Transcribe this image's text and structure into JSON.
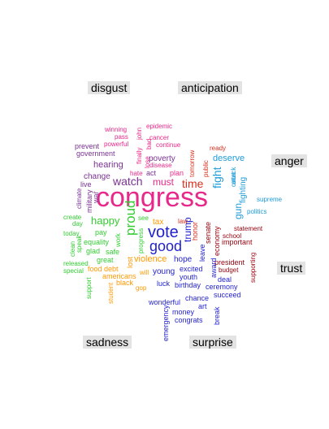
{
  "chart_data": {
    "type": "comparison-wordcloud",
    "categories": [
      "disgust",
      "anticipation",
      "anger",
      "trust",
      "sadness",
      "surprise"
    ],
    "colors": {
      "disgust": "#e7298a",
      "anticipation": "#d95f02",
      "anger": "#7570b3",
      "trust": "#1b9e77",
      "sadness": "#66a61e",
      "surprise": "#e6ab02",
      "brown": "#a6761d",
      "grey": "#666666",
      "pink": "#e7298a",
      "red": "#d7301f",
      "darkred": "#99000d",
      "purple": "#7b3294",
      "violet": "#6a3d9a",
      "blue": "#1f1fd0",
      "cyan": "#1f9bd8",
      "green": "#33cc33",
      "orange": "#ff9900",
      "darkgreen": "#33a02c",
      "navy": "#253494"
    },
    "words": [
      {
        "text": "congress",
        "color": "pink",
        "size": 34,
        "rotate": 0
      },
      {
        "text": "vote",
        "color": "blue",
        "size": 20,
        "rotate": 0
      },
      {
        "text": "good",
        "color": "blue",
        "size": 18,
        "rotate": 0
      },
      {
        "text": "proud",
        "color": "green",
        "size": 17,
        "rotate": -90
      },
      {
        "text": "watch",
        "color": "purple",
        "size": 14,
        "rotate": 0
      },
      {
        "text": "happy",
        "color": "green",
        "size": 13,
        "rotate": 0
      },
      {
        "text": "time",
        "color": "red",
        "size": 14,
        "rotate": 0
      },
      {
        "text": "fight",
        "color": "cyan",
        "size": 14,
        "rotate": -90
      },
      {
        "text": "gun",
        "color": "cyan",
        "size": 12,
        "rotate": -90
      },
      {
        "text": "trump",
        "color": "blue",
        "size": 12,
        "rotate": -90
      },
      {
        "text": "must",
        "color": "pink",
        "size": 12,
        "rotate": 0
      },
      {
        "text": "hearing",
        "color": "purple",
        "size": 11,
        "rotate": 0
      },
      {
        "text": "violence",
        "color": "orange",
        "size": 11,
        "rotate": 0
      },
      {
        "text": "deserve",
        "color": "cyan",
        "size": 11,
        "rotate": 0
      },
      {
        "text": "fighting",
        "color": "cyan",
        "size": 10,
        "rotate": -90
      },
      {
        "text": "hope",
        "color": "blue",
        "size": 10,
        "rotate": 0
      },
      {
        "text": "young",
        "color": "blue",
        "size": 10,
        "rotate": 0
      },
      {
        "text": "tax",
        "color": "orange",
        "size": 10,
        "rotate": 0
      },
      {
        "text": "poverty",
        "color": "purple",
        "size": 10,
        "rotate": 0
      },
      {
        "text": "change",
        "color": "purple",
        "size": 10,
        "rotate": 0
      },
      {
        "text": "excited",
        "color": "blue",
        "size": 9,
        "rotate": 0
      },
      {
        "text": "equality",
        "color": "green",
        "size": 9,
        "rotate": 0
      },
      {
        "text": "pay",
        "color": "green",
        "size": 9,
        "rotate": 0
      },
      {
        "text": "debt",
        "color": "orange",
        "size": 9,
        "rotate": 0
      },
      {
        "text": "plan",
        "color": "pink",
        "size": 9,
        "rotate": 0
      },
      {
        "text": "act",
        "color": "purple",
        "size": 9,
        "rotate": 0
      },
      {
        "text": "honor",
        "color": "red",
        "size": 9,
        "rotate": -90
      },
      {
        "text": "senate",
        "color": "darkred",
        "size": 9,
        "rotate": -90
      },
      {
        "text": "economy",
        "color": "darkred",
        "size": 9,
        "rotate": -90
      },
      {
        "text": "important",
        "color": "darkred",
        "size": 9,
        "rotate": 0
      },
      {
        "text": "president",
        "color": "darkred",
        "size": 9,
        "rotate": 0
      },
      {
        "text": "award",
        "color": "blue",
        "size": 9,
        "rotate": -90
      },
      {
        "text": "leave",
        "color": "blue",
        "size": 9,
        "rotate": -90
      },
      {
        "text": "luck",
        "color": "blue",
        "size": 9,
        "rotate": 0
      },
      {
        "text": "birthday",
        "color": "blue",
        "size": 9,
        "rotate": 0
      },
      {
        "text": "ceremony",
        "color": "blue",
        "size": 9,
        "rotate": 0
      },
      {
        "text": "youth",
        "color": "blue",
        "size": 9,
        "rotate": 0
      },
      {
        "text": "deal",
        "color": "blue",
        "size": 9,
        "rotate": 0
      },
      {
        "text": "succeed",
        "color": "blue",
        "size": 9,
        "rotate": 0
      },
      {
        "text": "chance",
        "color": "blue",
        "size": 9,
        "rotate": 0
      },
      {
        "text": "wonderful",
        "color": "blue",
        "size": 9,
        "rotate": 0
      },
      {
        "text": "art",
        "color": "blue",
        "size": 9,
        "rotate": 0
      },
      {
        "text": "money",
        "color": "blue",
        "size": 9,
        "rotate": 0
      },
      {
        "text": "congrats",
        "color": "blue",
        "size": 9,
        "rotate": 0
      },
      {
        "text": "break",
        "color": "blue",
        "size": 9,
        "rotate": -90
      },
      {
        "text": "emergency",
        "color": "blue",
        "size": 9,
        "rotate": -90
      },
      {
        "text": "lost",
        "color": "orange",
        "size": 9,
        "rotate": -90
      },
      {
        "text": "progress",
        "color": "green",
        "size": 8,
        "rotate": -90
      },
      {
        "text": "see",
        "color": "green",
        "size": 8,
        "rotate": 0
      },
      {
        "text": "work",
        "color": "green",
        "size": 8,
        "rotate": -90
      },
      {
        "text": "safe",
        "color": "green",
        "size": 9,
        "rotate": 0
      },
      {
        "text": "great",
        "color": "green",
        "size": 9,
        "rotate": 0
      },
      {
        "text": "glad",
        "color": "green",
        "size": 9,
        "rotate": 0
      },
      {
        "text": "clean",
        "color": "green",
        "size": 8,
        "rotate": -90
      },
      {
        "text": "speak",
        "color": "green",
        "size": 8,
        "rotate": -90
      },
      {
        "text": "food",
        "color": "orange",
        "size": 9,
        "rotate": 0
      },
      {
        "text": "americans",
        "color": "orange",
        "size": 9,
        "rotate": 0
      },
      {
        "text": "black",
        "color": "orange",
        "size": 9,
        "rotate": 0
      },
      {
        "text": "will",
        "color": "orange",
        "size": 8,
        "rotate": 0
      },
      {
        "text": "gop",
        "color": "orange",
        "size": 8,
        "rotate": 0
      },
      {
        "text": "student",
        "color": "orange",
        "size": 8,
        "rotate": -90
      },
      {
        "text": "support",
        "color": "green",
        "size": 8,
        "rotate": -90
      },
      {
        "text": "military",
        "color": "purple",
        "size": 9,
        "rotate": -90
      },
      {
        "text": "war",
        "color": "purple",
        "size": 9,
        "rotate": -90
      },
      {
        "text": "live",
        "color": "purple",
        "size": 9,
        "rotate": 0
      },
      {
        "text": "climate",
        "color": "purple",
        "size": 8,
        "rotate": -90
      },
      {
        "text": "prevent",
        "color": "purple",
        "size": 9,
        "rotate": 0
      },
      {
        "text": "government",
        "color": "purple",
        "size": 9,
        "rotate": 0
      },
      {
        "text": "winning",
        "color": "pink",
        "size": 8,
        "rotate": 0
      },
      {
        "text": "pass",
        "color": "pink",
        "size": 8,
        "rotate": 0
      },
      {
        "text": "powerful",
        "color": "pink",
        "size": 8,
        "rotate": 0
      },
      {
        "text": "epidemic",
        "color": "pink",
        "size": 8,
        "rotate": 0
      },
      {
        "text": "cancer",
        "color": "pink",
        "size": 8,
        "rotate": 0
      },
      {
        "text": "continue",
        "color": "pink",
        "size": 8,
        "rotate": 0
      },
      {
        "text": "disease",
        "color": "pink",
        "size": 8,
        "rotate": 0
      },
      {
        "text": "hate",
        "color": "pink",
        "size": 8,
        "rotate": 0
      },
      {
        "text": "finally",
        "color": "pink",
        "size": 8,
        "rotate": -90
      },
      {
        "text": "john",
        "color": "pink",
        "size": 8,
        "rotate": -90
      },
      {
        "text": "lose",
        "color": "pink",
        "size": 8,
        "rotate": -90
      },
      {
        "text": "bad",
        "color": "pink",
        "size": 8,
        "rotate": -90
      },
      {
        "text": "public",
        "color": "red",
        "size": 8,
        "rotate": -90
      },
      {
        "text": "tomorrow",
        "color": "red",
        "size": 8,
        "rotate": -90
      },
      {
        "text": "ready",
        "color": "red",
        "size": 8,
        "rotate": 0
      },
      {
        "text": "law",
        "color": "red",
        "size": 8,
        "rotate": 0
      },
      {
        "text": "court",
        "color": "cyan",
        "size": 8,
        "rotate": -90
      },
      {
        "text": "attack",
        "color": "cyan",
        "size": 8,
        "rotate": -90
      },
      {
        "text": "supreme",
        "color": "cyan",
        "size": 8,
        "rotate": 0
      },
      {
        "text": "politics",
        "color": "cyan",
        "size": 8,
        "rotate": 0
      },
      {
        "text": "statement",
        "color": "darkred",
        "size": 8,
        "rotate": 0
      },
      {
        "text": "school",
        "color": "darkred",
        "size": 8,
        "rotate": 0
      },
      {
        "text": "budget",
        "color": "darkred",
        "size": 8,
        "rotate": 0
      },
      {
        "text": "supporting",
        "color": "darkred",
        "size": 8,
        "rotate": -90
      },
      {
        "text": "create",
        "color": "green",
        "size": 8,
        "rotate": 0
      },
      {
        "text": "day",
        "color": "green",
        "size": 8,
        "rotate": 0
      },
      {
        "text": "today",
        "color": "green",
        "size": 8,
        "rotate": 0
      },
      {
        "text": "released",
        "color": "green",
        "size": 8,
        "rotate": 0
      },
      {
        "text": "special",
        "color": "green",
        "size": 8,
        "rotate": 0
      }
    ]
  }
}
